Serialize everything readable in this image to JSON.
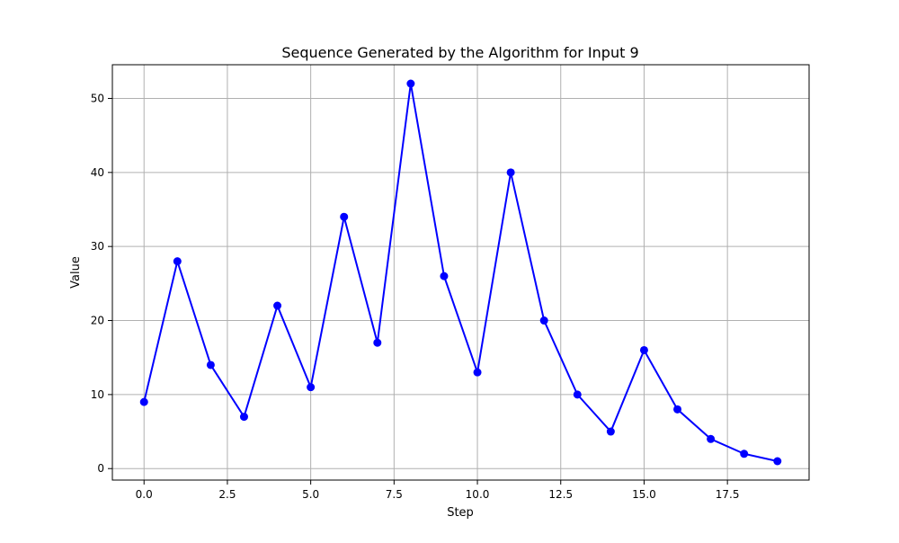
{
  "chart_data": {
    "type": "line",
    "title": "Sequence Generated by the Algorithm for Input 9",
    "xlabel": "Step",
    "ylabel": "Value",
    "xlim": [
      -0.95,
      19.95
    ],
    "ylim": [
      -1.55,
      54.55
    ],
    "xticks": [
      0,
      2.5,
      5,
      7.5,
      10,
      12.5,
      15,
      17.5
    ],
    "xtick_labels": [
      "0.0",
      "2.5",
      "5.0",
      "7.5",
      "10.0",
      "12.5",
      "15.0",
      "17.5"
    ],
    "yticks": [
      0,
      10,
      20,
      30,
      40,
      50
    ],
    "ytick_labels": [
      "0",
      "10",
      "20",
      "30",
      "40",
      "50"
    ],
    "grid": true,
    "legend": "none",
    "series": [
      {
        "color": "#0000ff",
        "marker": "circle",
        "x": [
          0,
          1,
          2,
          3,
          4,
          5,
          6,
          7,
          8,
          9,
          10,
          11,
          12,
          13,
          14,
          15,
          16,
          17,
          18,
          19
        ],
        "y": [
          9,
          28,
          14,
          7,
          22,
          11,
          34,
          17,
          52,
          26,
          13,
          40,
          20,
          10,
          5,
          16,
          8,
          4,
          2,
          1
        ]
      }
    ]
  }
}
